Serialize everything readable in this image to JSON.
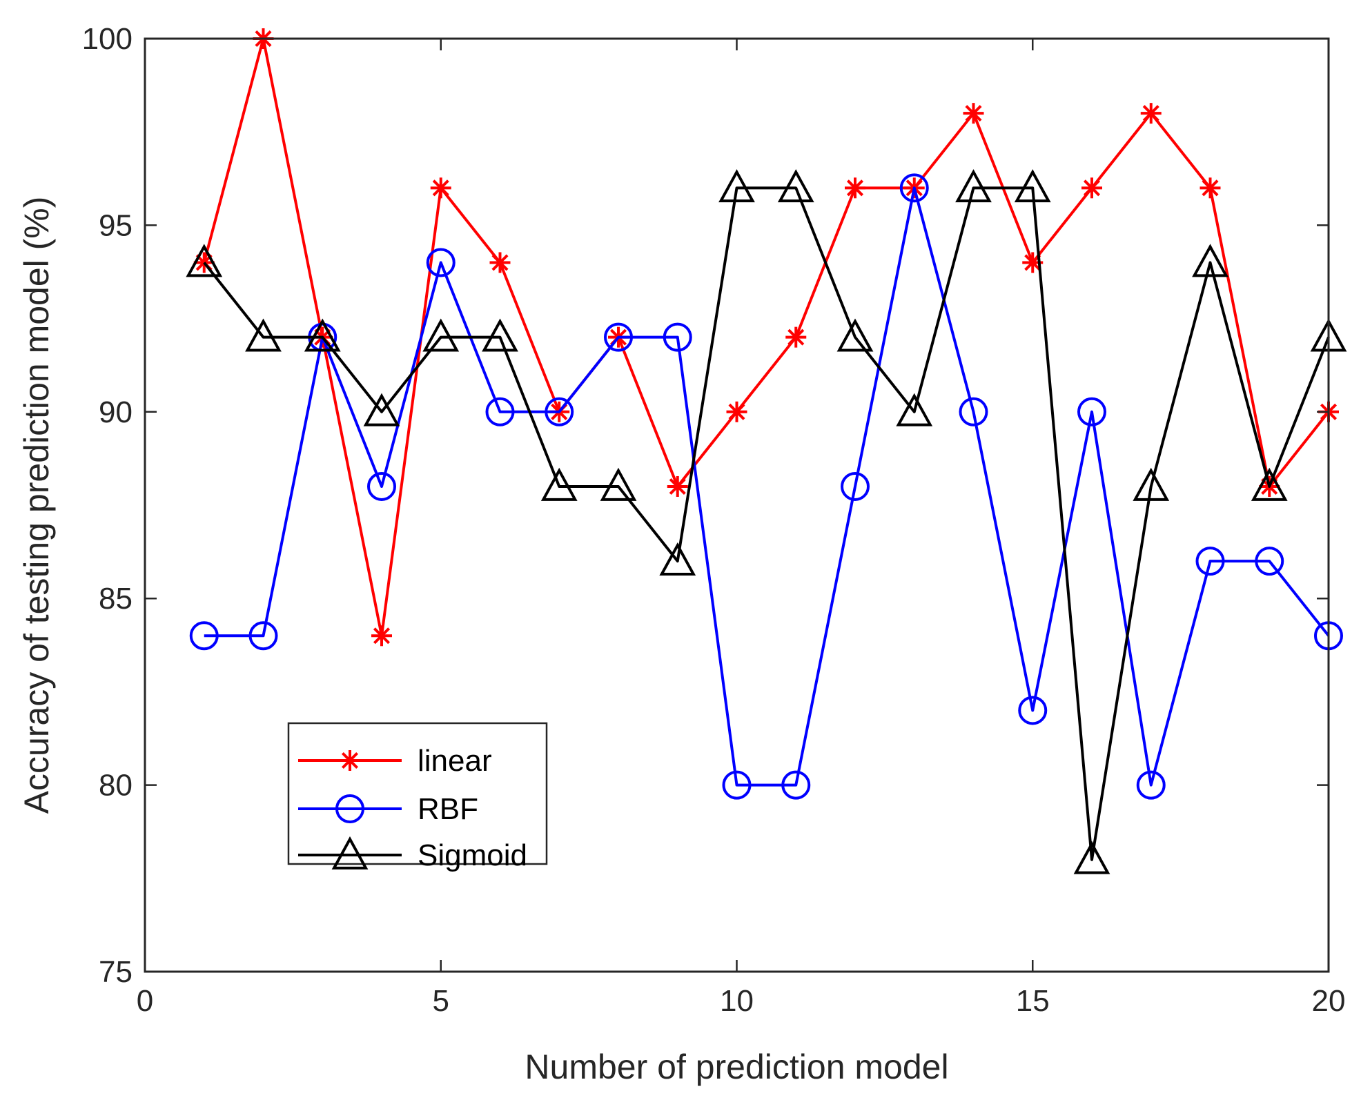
{
  "chart_data": {
    "type": "line",
    "title": "",
    "xlabel": "Number of prediction model",
    "ylabel": "Accuracy of testing prediction model (%)",
    "xlim": [
      0,
      20
    ],
    "ylim": [
      75,
      100
    ],
    "xticks": [
      0,
      5,
      10,
      15,
      20
    ],
    "yticks": [
      75,
      80,
      85,
      90,
      95,
      100
    ],
    "grid": false,
    "legend_position": "lower-left",
    "x": [
      1,
      2,
      3,
      4,
      5,
      6,
      7,
      8,
      9,
      10,
      11,
      12,
      13,
      14,
      15,
      16,
      17,
      18,
      19,
      20
    ],
    "series": [
      {
        "name": "linear",
        "color": "#ff0000",
        "marker": "asterisk",
        "values": [
          94,
          100,
          92,
          84,
          96,
          94,
          90,
          92,
          88,
          90,
          92,
          96,
          96,
          98,
          94,
          96,
          98,
          96,
          88,
          90
        ]
      },
      {
        "name": "RBF",
        "color": "#0000ff",
        "marker": "circle",
        "values": [
          84,
          84,
          92,
          88,
          94,
          90,
          90,
          92,
          92,
          80,
          80,
          88,
          96,
          90,
          82,
          90,
          80,
          86,
          86,
          84
        ]
      },
      {
        "name": "Sigmoid",
        "color": "#000000",
        "marker": "triangle",
        "values": [
          94,
          92,
          92,
          90,
          92,
          92,
          88,
          88,
          86,
          96,
          96,
          92,
          90,
          96,
          96,
          78,
          88,
          94,
          88,
          92
        ]
      }
    ]
  }
}
